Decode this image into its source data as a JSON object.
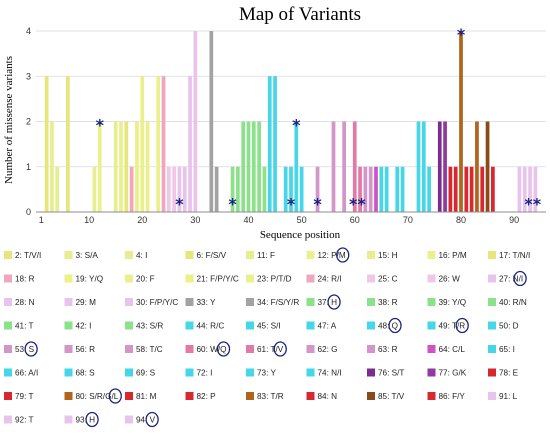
{
  "chart_data": {
    "type": "bar",
    "title": "Map of Variants",
    "xlabel": "Sequence position",
    "ylabel": "Number of missense variants",
    "xlim": [
      0,
      96
    ],
    "ylim": [
      0,
      4
    ],
    "xticks": [
      1,
      10,
      20,
      30,
      40,
      50,
      60,
      70,
      80,
      90
    ],
    "yticks": [
      0,
      1,
      2,
      3,
      4
    ],
    "grid": "horizontal",
    "series": [
      {
        "label": "2: T/V/I",
        "x": 2,
        "value": 3,
        "color": "#e6e67a",
        "marked": false
      },
      {
        "label": "3: S/A",
        "x": 3,
        "value": 2,
        "color": "#e6ee8f",
        "marked": false
      },
      {
        "label": "4: I",
        "x": 4,
        "value": 1,
        "color": "#e6ee8f",
        "marked": false
      },
      {
        "label": "6: F/S/V",
        "x": 6,
        "value": 3,
        "color": "#e6e67a",
        "marked": false
      },
      {
        "label": "11: F",
        "x": 11,
        "value": 1,
        "color": "#e6ee8f",
        "marked": false
      },
      {
        "label": "12: P/M",
        "x": 12,
        "value": 2,
        "color": "#eaf08c",
        "marked": true
      },
      {
        "label": "15: H",
        "x": 15,
        "value": 2,
        "color": "#e6ee8f",
        "marked": false
      },
      {
        "label": "16: P/M",
        "x": 16,
        "value": 2,
        "color": "#eaf08c",
        "marked": false
      },
      {
        "label": "17: T/N/I",
        "x": 17,
        "value": 2,
        "color": "#e6e67a",
        "marked": false
      },
      {
        "label": "18: R",
        "x": 18,
        "value": 1,
        "color": "#f2a6bd",
        "marked": false
      },
      {
        "label": "19: Y/Q",
        "x": 19,
        "value": 2,
        "color": "#ecf085",
        "marked": false
      },
      {
        "label": "20: F",
        "x": 20,
        "value": 3,
        "color": "#eaf08c",
        "marked": false
      },
      {
        "label": "21: F/P/Y/C",
        "x": 21,
        "value": 2,
        "color": "#ecf085",
        "marked": false
      },
      {
        "label": "23: P/T/D",
        "x": 23,
        "value": 3,
        "color": "#eaf08c",
        "marked": false
      },
      {
        "label": "24: R/I",
        "x": 24,
        "value": 3,
        "color": "#f2a6bd",
        "marked": false
      },
      {
        "label": "25: C",
        "x": 25,
        "value": 1,
        "color": "#f0c8e6",
        "marked": false
      },
      {
        "label": "26: W",
        "x": 26,
        "value": 1,
        "color": "#f0c8e6",
        "marked": false
      },
      {
        "label": "27: N/I",
        "x": 27,
        "value": 1,
        "color": "#e8c4ec",
        "marked": true
      },
      {
        "label": "28: N",
        "x": 28,
        "value": 1,
        "color": "#e8c4ec",
        "marked": false
      },
      {
        "label": "29: M",
        "x": 29,
        "value": 3,
        "color": "#e8c4ec",
        "marked": false
      },
      {
        "label": "30: F/P/Y/C",
        "x": 30,
        "value": 4,
        "color": "#e8c4ec",
        "marked": false
      },
      {
        "label": "33: Y",
        "x": 33,
        "value": 4,
        "color": "#a3a3a3",
        "marked": false
      },
      {
        "label": "34: F/S/Y/R",
        "x": 34,
        "value": 1,
        "color": "#a3a3a3",
        "marked": false
      },
      {
        "label": "37: H",
        "x": 37,
        "value": 1,
        "color": "#8be28b",
        "marked": true
      },
      {
        "label": "38: R",
        "x": 38,
        "value": 1,
        "color": "#8be28b",
        "marked": false
      },
      {
        "label": "39: Y/Q",
        "x": 39,
        "value": 2,
        "color": "#8be28b",
        "marked": false
      },
      {
        "label": "40: R/N",
        "x": 40,
        "value": 2,
        "color": "#8be28b",
        "marked": false
      },
      {
        "label": "41: T",
        "x": 41,
        "value": 2,
        "color": "#8be28b",
        "marked": false
      },
      {
        "label": "42: I",
        "x": 42,
        "value": 2,
        "color": "#8be28b",
        "marked": false
      },
      {
        "label": "43: S/R",
        "x": 43,
        "value": 1,
        "color": "#8be28b",
        "marked": false
      },
      {
        "label": "44: R/C",
        "x": 44,
        "value": 3,
        "color": "#45d6e8",
        "marked": false
      },
      {
        "label": "45: S/I",
        "x": 45,
        "value": 3,
        "color": "#45d6e8",
        "marked": false
      },
      {
        "label": "47: A",
        "x": 47,
        "value": 1,
        "color": "#45d6e8",
        "marked": false
      },
      {
        "label": "48: Q",
        "x": 48,
        "value": 1,
        "color": "#45d6e8",
        "marked": true
      },
      {
        "label": "49: T/R",
        "x": 49,
        "value": 2,
        "color": "#45d6e8",
        "marked": true
      },
      {
        "label": "50: D",
        "x": 50,
        "value": 1,
        "color": "#45d6e8",
        "marked": false
      },
      {
        "label": "53: S",
        "x": 53,
        "value": 1,
        "color": "#d296c8",
        "marked": true
      },
      {
        "label": "56: R",
        "x": 56,
        "value": 2,
        "color": "#d296c8",
        "marked": false
      },
      {
        "label": "58: T/C",
        "x": 58,
        "value": 2,
        "color": "#d296c8",
        "marked": false
      },
      {
        "label": "60: W/Q",
        "x": 60,
        "value": 2,
        "color": "#e27aa8",
        "marked": true
      },
      {
        "label": "61: T/V",
        "x": 61,
        "value": 1,
        "color": "#e27aa8",
        "marked": true
      },
      {
        "label": "62: G",
        "x": 62,
        "value": 1,
        "color": "#d296c8",
        "marked": false
      },
      {
        "label": "63: R",
        "x": 63,
        "value": 1,
        "color": "#d296c8",
        "marked": false
      },
      {
        "label": "64: C/L",
        "x": 64,
        "value": 1,
        "color": "#d052c4",
        "marked": false
      },
      {
        "label": "65: I",
        "x": 65,
        "value": 1,
        "color": "#45d6e8",
        "marked": false
      },
      {
        "label": "66: A/I",
        "x": 66,
        "value": 1,
        "color": "#45d6e8",
        "marked": false
      },
      {
        "label": "68: S",
        "x": 68,
        "value": 1,
        "color": "#45d6e8",
        "marked": false
      },
      {
        "label": "69: S",
        "x": 69,
        "value": 1,
        "color": "#45d6e8",
        "marked": false
      },
      {
        "label": "72: I",
        "x": 72,
        "value": 2,
        "color": "#45d6e8",
        "marked": false
      },
      {
        "label": "73: Y",
        "x": 73,
        "value": 2,
        "color": "#45d6e8",
        "marked": false
      },
      {
        "label": "74: N/I",
        "x": 74,
        "value": 1,
        "color": "#45d6e8",
        "marked": false
      },
      {
        "label": "76: S/T",
        "x": 76,
        "value": 2,
        "color": "#7a2e8c",
        "marked": false
      },
      {
        "label": "77: G/K",
        "x": 77,
        "value": 2,
        "color": "#8e3aa0",
        "marked": false
      },
      {
        "label": "78: E",
        "x": 78,
        "value": 1,
        "color": "#d8282f",
        "marked": false
      },
      {
        "label": "79: T",
        "x": 79,
        "value": 1,
        "color": "#d8282f",
        "marked": false
      },
      {
        "label": "80: S/R/G/L",
        "x": 80,
        "value": 4,
        "color": "#b0641c",
        "marked": true
      },
      {
        "label": "81: M",
        "x": 81,
        "value": 1,
        "color": "#d8282f",
        "marked": false
      },
      {
        "label": "82: P",
        "x": 82,
        "value": 1,
        "color": "#d8282f",
        "marked": false
      },
      {
        "label": "83: T/R",
        "x": 83,
        "value": 2,
        "color": "#b0641c",
        "marked": false
      },
      {
        "label": "84: N",
        "x": 84,
        "value": 1,
        "color": "#d8282f",
        "marked": false
      },
      {
        "label": "85: T/V",
        "x": 85,
        "value": 2,
        "color": "#8a4b1a",
        "marked": false
      },
      {
        "label": "86: F/Y",
        "x": 86,
        "value": 1,
        "color": "#d8282f",
        "marked": false
      },
      {
        "label": "91: L",
        "x": 91,
        "value": 1,
        "color": "#e8c4ec",
        "marked": false
      },
      {
        "label": "92: T",
        "x": 92,
        "value": 1,
        "color": "#e8c4ec",
        "marked": false
      },
      {
        "label": "93: H",
        "x": 93,
        "value": 1,
        "color": "#e8c4ec",
        "marked": true
      },
      {
        "label": "94: V",
        "x": 94,
        "value": 1,
        "color": "#e8c4ec",
        "marked": true
      }
    ],
    "annotations": [
      {
        "text": "*",
        "x": 12,
        "y": 2
      },
      {
        "text": "*",
        "x": 27,
        "y": 0.25
      },
      {
        "text": "*",
        "x": 37,
        "y": 0.25
      },
      {
        "text": "*",
        "x": 48,
        "y": 0.25
      },
      {
        "text": "*",
        "x": 49,
        "y": 2
      },
      {
        "text": "*",
        "x": 53,
        "y": 0.25
      },
      {
        "text": "**",
        "x": 60.5,
        "y": 0.25
      },
      {
        "text": "*",
        "x": 80,
        "y": 4
      },
      {
        "text": "**",
        "x": 93.5,
        "y": 0.25
      }
    ]
  }
}
